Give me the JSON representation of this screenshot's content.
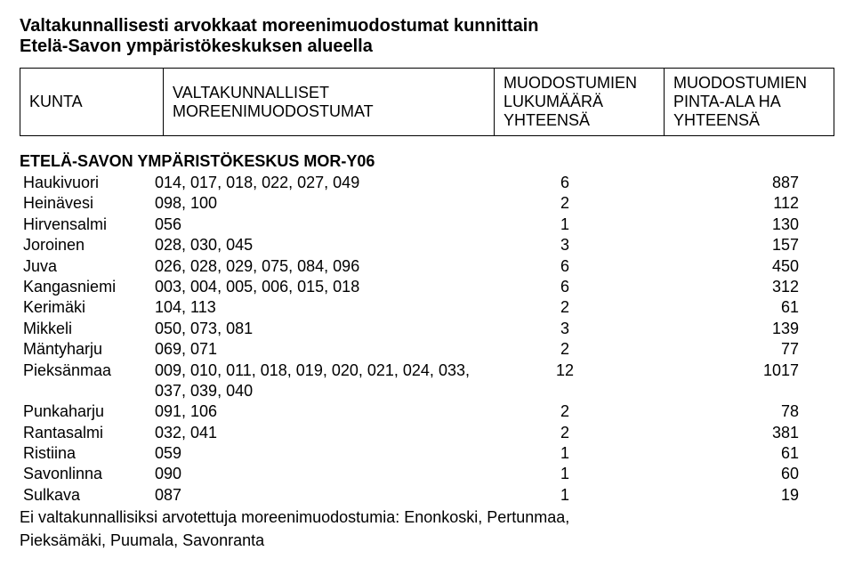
{
  "title_line1": "Valtakunnallisesti arvokkaat moreenimuodostumat kunnittain",
  "title_line2": "Etelä-Savon ympäristökeskuksen alueella",
  "header": {
    "c1": "KUNTA",
    "c2": "VALTAKUNNALLISET MOREENIMUODOSTUMAT",
    "c3": "MUODOSTUMIEN LUKUMÄÄRÄ YHTEENSÄ",
    "c4": "MUODOSTUMIEN PINTA-ALA HA YHTEENSÄ"
  },
  "section_title": "ETELÄ-SAVON YMPÄRISTÖKESKUS MOR-Y06",
  "rows": [
    {
      "k": "Haukivuori",
      "codes": "014, 017, 018, 022, 027, 049",
      "n": "6",
      "a": "887"
    },
    {
      "k": "Heinävesi",
      "codes": "098, 100",
      "n": "2",
      "a": "112"
    },
    {
      "k": "Hirvensalmi",
      "codes": "056",
      "n": "1",
      "a": "130"
    },
    {
      "k": "Joroinen",
      "codes": "028, 030, 045",
      "n": "3",
      "a": "157"
    },
    {
      "k": "Juva",
      "codes": "026, 028, 029, 075, 084, 096",
      "n": "6",
      "a": "450"
    },
    {
      "k": "Kangasniemi",
      "codes": "003, 004, 005, 006, 015, 018",
      "n": "6",
      "a": "312"
    },
    {
      "k": "Kerimäki",
      "codes": "104, 113",
      "n": "2",
      "a": "61"
    },
    {
      "k": "Mikkeli",
      "codes": "050, 073, 081",
      "n": "3",
      "a": "139"
    },
    {
      "k": "Mäntyharju",
      "codes": "069, 071",
      "n": "2",
      "a": "77"
    },
    {
      "k": "Pieksänmaa",
      "codes": "009, 010, 011, 018, 019, 020, 021, 024, 033, 037, 039, 040",
      "n": "12",
      "a": "1017"
    },
    {
      "k": "Punkaharju",
      "codes": "091, 106",
      "n": "2",
      "a": "78"
    },
    {
      "k": "Rantasalmi",
      "codes": "032, 041",
      "n": "2",
      "a": "381"
    },
    {
      "k": "Ristiina",
      "codes": "059",
      "n": "1",
      "a": "61"
    },
    {
      "k": "Savonlinna",
      "codes": "090",
      "n": "1",
      "a": "60"
    },
    {
      "k": "Sulkava",
      "codes": "087",
      "n": "1",
      "a": "19"
    }
  ],
  "footer_line1": "Ei valtakunnallisiksi arvotettuja moreenimuodostumia: Enonkoski, Pertunmaa,",
  "footer_line2": "Pieksämäki, Puumala, Savonranta"
}
